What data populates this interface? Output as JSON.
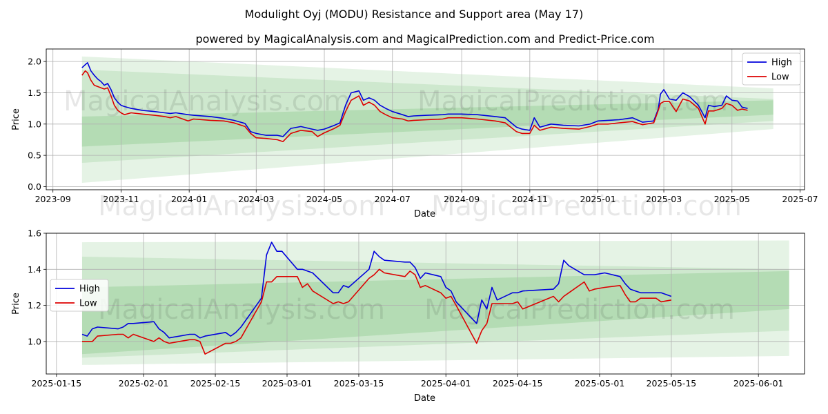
{
  "figure": {
    "title": "Modulight Oyj (MODU) Resistance and Support area (May 17)",
    "subtitle": "powered by MagicalAnalysis.com and MagicalPrediction.com and Predict-Price.com",
    "watermarks": [
      "MagicalAnalysis.com",
      "MagicalPrediction.com"
    ]
  },
  "colors": {
    "high": "#0000dd",
    "low": "#dd0000",
    "band": "#2ca02c",
    "grid": "#b0b0b0"
  },
  "chart_data": [
    {
      "type": "line",
      "xlabel": "Date",
      "ylabel": "Price",
      "legend_position": "top-right",
      "grid": true,
      "x_range": [
        "2023-08-26",
        "2025-07-05"
      ],
      "ylim": [
        -0.05,
        2.2
      ],
      "x_ticks": [
        "2023-09",
        "2023-11",
        "2024-01",
        "2024-03",
        "2024-05",
        "2024-07",
        "2024-09",
        "2024-11",
        "2025-01",
        "2025-03",
        "2025-05",
        "2025-07"
      ],
      "y_ticks": [
        "0.0",
        "0.5",
        "1.0",
        "1.5",
        "2.0"
      ],
      "bands": [
        {
          "x": [
            "2023-09-27",
            "2025-06-07"
          ],
          "upper": [
            2.08,
            1.57
          ],
          "lower": [
            0.06,
            0.92
          ]
        },
        {
          "x": [
            "2023-09-27",
            "2025-06-07"
          ],
          "upper": [
            1.87,
            1.4
          ],
          "lower": [
            0.38,
            1.05
          ]
        },
        {
          "x": [
            "2023-09-27",
            "2025-06-07"
          ],
          "upper": [
            1.12,
            1.38
          ],
          "lower": [
            0.64,
            1.15
          ]
        }
      ],
      "series": [
        {
          "name": "High",
          "x": [
            "2023-09-27",
            "2023-09-30",
            "2023-10-02",
            "2023-10-05",
            "2023-10-08",
            "2023-10-11",
            "2023-10-14",
            "2023-10-17",
            "2023-10-20",
            "2023-10-23",
            "2023-10-26",
            "2023-10-29",
            "2023-11-01",
            "2023-11-04",
            "2023-11-10",
            "2023-11-20",
            "2023-12-01",
            "2023-12-10",
            "2023-12-15",
            "2023-12-20",
            "2023-12-31",
            "2024-01-05",
            "2024-01-20",
            "2024-02-01",
            "2024-02-10",
            "2024-02-20",
            "2024-02-25",
            "2024-03-01",
            "2024-03-10",
            "2024-03-20",
            "2024-03-25",
            "2024-04-01",
            "2024-04-10",
            "2024-04-20",
            "2024-04-25",
            "2024-05-01",
            "2024-05-10",
            "2024-05-15",
            "2024-05-20",
            "2024-05-25",
            "2024-06-01",
            "2024-06-05",
            "2024-06-10",
            "2024-06-15",
            "2024-06-20",
            "2024-06-25",
            "2024-07-01",
            "2024-07-10",
            "2024-07-15",
            "2024-07-20",
            "2024-08-01",
            "2024-08-15",
            "2024-08-20",
            "2024-09-01",
            "2024-09-15",
            "2024-10-01",
            "2024-10-10",
            "2024-10-20",
            "2024-10-25",
            "2024-11-01",
            "2024-11-05",
            "2024-11-10",
            "2024-11-20",
            "2024-12-01",
            "2024-12-15",
            "2024-12-25",
            "2025-01-01",
            "2025-01-10",
            "2025-01-20",
            "2025-02-01",
            "2025-02-10",
            "2025-02-20",
            "2025-02-24",
            "2025-02-26",
            "2025-03-01",
            "2025-03-06",
            "2025-03-12",
            "2025-03-18",
            "2025-03-24",
            "2025-04-01",
            "2025-04-07",
            "2025-04-10",
            "2025-04-15",
            "2025-04-22",
            "2025-04-26",
            "2025-05-01",
            "2025-05-06",
            "2025-05-10",
            "2025-05-15"
          ],
          "values": [
            1.9,
            1.95,
            1.98,
            1.85,
            1.78,
            1.72,
            1.68,
            1.62,
            1.65,
            1.55,
            1.42,
            1.35,
            1.3,
            1.28,
            1.25,
            1.22,
            1.2,
            1.18,
            1.17,
            1.18,
            1.15,
            1.14,
            1.12,
            1.09,
            1.06,
            1.01,
            0.88,
            0.85,
            0.82,
            0.82,
            0.8,
            0.93,
            0.96,
            0.92,
            0.9,
            0.92,
            0.98,
            1.02,
            1.3,
            1.5,
            1.53,
            1.38,
            1.42,
            1.38,
            1.3,
            1.25,
            1.2,
            1.15,
            1.12,
            1.13,
            1.14,
            1.15,
            1.16,
            1.16,
            1.15,
            1.12,
            1.1,
            0.95,
            0.92,
            0.9,
            1.1,
            0.95,
            1.0,
            0.98,
            0.97,
            1.0,
            1.05,
            1.06,
            1.07,
            1.1,
            1.03,
            1.05,
            1.24,
            1.48,
            1.55,
            1.4,
            1.38,
            1.5,
            1.44,
            1.3,
            1.1,
            1.3,
            1.28,
            1.3,
            1.45,
            1.38,
            1.37,
            1.27,
            1.25
          ]
        },
        {
          "name": "Low",
          "x": [
            "2023-09-27",
            "2023-09-30",
            "2023-10-02",
            "2023-10-05",
            "2023-10-08",
            "2023-10-11",
            "2023-10-14",
            "2023-10-17",
            "2023-10-20",
            "2023-10-23",
            "2023-10-26",
            "2023-10-29",
            "2023-11-01",
            "2023-11-04",
            "2023-11-10",
            "2023-11-20",
            "2023-12-01",
            "2023-12-10",
            "2023-12-15",
            "2023-12-20",
            "2023-12-31",
            "2024-01-05",
            "2024-01-20",
            "2024-02-01",
            "2024-02-10",
            "2024-02-20",
            "2024-02-25",
            "2024-03-01",
            "2024-03-10",
            "2024-03-20",
            "2024-03-25",
            "2024-04-01",
            "2024-04-10",
            "2024-04-20",
            "2024-04-25",
            "2024-05-01",
            "2024-05-10",
            "2024-05-15",
            "2024-05-20",
            "2024-05-25",
            "2024-06-01",
            "2024-06-05",
            "2024-06-10",
            "2024-06-15",
            "2024-06-20",
            "2024-06-25",
            "2024-07-01",
            "2024-07-10",
            "2024-07-15",
            "2024-07-20",
            "2024-08-01",
            "2024-08-15",
            "2024-08-20",
            "2024-09-01",
            "2024-09-15",
            "2024-10-01",
            "2024-10-10",
            "2024-10-20",
            "2024-10-25",
            "2024-11-01",
            "2024-11-05",
            "2024-11-10",
            "2024-11-20",
            "2024-12-01",
            "2024-12-15",
            "2024-12-25",
            "2025-01-01",
            "2025-01-10",
            "2025-01-20",
            "2025-02-01",
            "2025-02-10",
            "2025-02-20",
            "2025-02-24",
            "2025-02-26",
            "2025-03-01",
            "2025-03-06",
            "2025-03-12",
            "2025-03-18",
            "2025-03-24",
            "2025-04-01",
            "2025-04-07",
            "2025-04-10",
            "2025-04-15",
            "2025-04-22",
            "2025-04-26",
            "2025-05-01",
            "2025-05-06",
            "2025-05-10",
            "2025-05-15"
          ],
          "values": [
            1.78,
            1.85,
            1.82,
            1.7,
            1.62,
            1.6,
            1.58,
            1.56,
            1.58,
            1.45,
            1.3,
            1.22,
            1.18,
            1.15,
            1.18,
            1.16,
            1.14,
            1.12,
            1.1,
            1.12,
            1.05,
            1.08,
            1.06,
            1.05,
            1.02,
            0.96,
            0.85,
            0.78,
            0.77,
            0.75,
            0.72,
            0.85,
            0.9,
            0.88,
            0.8,
            0.86,
            0.93,
            0.98,
            1.2,
            1.38,
            1.45,
            1.3,
            1.35,
            1.3,
            1.2,
            1.15,
            1.1,
            1.08,
            1.05,
            1.06,
            1.07,
            1.08,
            1.1,
            1.1,
            1.08,
            1.05,
            1.02,
            0.88,
            0.85,
            0.85,
            0.98,
            0.9,
            0.95,
            0.93,
            0.92,
            0.96,
            1.0,
            1.0,
            1.02,
            1.04,
            0.99,
            1.02,
            1.22,
            1.33,
            1.36,
            1.36,
            1.2,
            1.4,
            1.37,
            1.25,
            1.0,
            1.21,
            1.21,
            1.25,
            1.33,
            1.3,
            1.22,
            1.24,
            1.22
          ]
        }
      ]
    },
    {
      "type": "line",
      "xlabel": "Date",
      "ylabel": "Price",
      "legend_position": "center-left",
      "grid": true,
      "x_range": [
        "2025-01-13",
        "2025-06-10"
      ],
      "ylim": [
        0.82,
        1.6
      ],
      "x_ticks": [
        "2025-01-15",
        "2025-02-01",
        "2025-02-15",
        "2025-03-01",
        "2025-03-15",
        "2025-04-01",
        "2025-04-15",
        "2025-05-01",
        "2025-05-15",
        "2025-06-01"
      ],
      "y_ticks": [
        "1.0",
        "1.2",
        "1.4",
        "1.6"
      ],
      "bands": [
        {
          "x": [
            "2025-01-20",
            "2025-06-07"
          ],
          "upper": [
            1.55,
            1.56
          ],
          "lower": [
            0.87,
            0.92
          ]
        },
        {
          "x": [
            "2025-01-20",
            "2025-06-07"
          ],
          "upper": [
            1.47,
            1.4
          ],
          "lower": [
            0.91,
            1.06
          ]
        },
        {
          "x": [
            "2025-01-20",
            "2025-06-07"
          ],
          "upper": [
            1.3,
            1.39
          ],
          "lower": [
            0.93,
            1.18
          ]
        }
      ],
      "series": [
        {
          "name": "High",
          "x": [
            "2025-01-20",
            "2025-01-21",
            "2025-01-22",
            "2025-01-23",
            "2025-01-27",
            "2025-01-28",
            "2025-01-29",
            "2025-01-30",
            "2025-02-03",
            "2025-02-04",
            "2025-02-05",
            "2025-02-06",
            "2025-02-10",
            "2025-02-11",
            "2025-02-12",
            "2025-02-13",
            "2025-02-17",
            "2025-02-18",
            "2025-02-19",
            "2025-02-20",
            "2025-02-24",
            "2025-02-25",
            "2025-02-26",
            "2025-02-27",
            "2025-02-28",
            "2025-03-03",
            "2025-03-04",
            "2025-03-05",
            "2025-03-06",
            "2025-03-10",
            "2025-03-11",
            "2025-03-12",
            "2025-03-13",
            "2025-03-17",
            "2025-03-18",
            "2025-03-19",
            "2025-03-20",
            "2025-03-24",
            "2025-03-25",
            "2025-03-26",
            "2025-03-27",
            "2025-03-28",
            "2025-03-31",
            "2025-04-01",
            "2025-04-02",
            "2025-04-03",
            "2025-04-07",
            "2025-04-08",
            "2025-04-09",
            "2025-04-10",
            "2025-04-11",
            "2025-04-14",
            "2025-04-15",
            "2025-04-16",
            "2025-04-22",
            "2025-04-23",
            "2025-04-24",
            "2025-04-25",
            "2025-04-28",
            "2025-04-29",
            "2025-04-30",
            "2025-05-02",
            "2025-05-05",
            "2025-05-06",
            "2025-05-07",
            "2025-05-08",
            "2025-05-09",
            "2025-05-12",
            "2025-05-13",
            "2025-05-15"
          ],
          "values": [
            1.04,
            1.03,
            1.07,
            1.08,
            1.07,
            1.08,
            1.1,
            1.1,
            1.11,
            1.07,
            1.05,
            1.02,
            1.04,
            1.04,
            1.02,
            1.03,
            1.05,
            1.03,
            1.05,
            1.08,
            1.24,
            1.48,
            1.55,
            1.5,
            1.5,
            1.4,
            1.4,
            1.39,
            1.38,
            1.27,
            1.27,
            1.31,
            1.3,
            1.4,
            1.5,
            1.47,
            1.45,
            1.44,
            1.44,
            1.41,
            1.35,
            1.38,
            1.36,
            1.3,
            1.28,
            1.22,
            1.1,
            1.23,
            1.18,
            1.3,
            1.23,
            1.27,
            1.27,
            1.28,
            1.29,
            1.32,
            1.45,
            1.42,
            1.37,
            1.37,
            1.37,
            1.38,
            1.36,
            1.32,
            1.29,
            1.28,
            1.27,
            1.27,
            1.27,
            1.25
          ]
        },
        {
          "name": "Low",
          "x": [
            "2025-01-20",
            "2025-01-21",
            "2025-01-22",
            "2025-01-23",
            "2025-01-27",
            "2025-01-28",
            "2025-01-29",
            "2025-01-30",
            "2025-02-03",
            "2025-02-04",
            "2025-02-05",
            "2025-02-06",
            "2025-02-10",
            "2025-02-11",
            "2025-02-12",
            "2025-02-13",
            "2025-02-17",
            "2025-02-18",
            "2025-02-19",
            "2025-02-20",
            "2025-02-24",
            "2025-02-25",
            "2025-02-26",
            "2025-02-27",
            "2025-02-28",
            "2025-03-03",
            "2025-03-04",
            "2025-03-05",
            "2025-03-06",
            "2025-03-10",
            "2025-03-11",
            "2025-03-12",
            "2025-03-13",
            "2025-03-17",
            "2025-03-18",
            "2025-03-19",
            "2025-03-20",
            "2025-03-24",
            "2025-03-25",
            "2025-03-26",
            "2025-03-27",
            "2025-03-28",
            "2025-03-31",
            "2025-04-01",
            "2025-04-02",
            "2025-04-03",
            "2025-04-07",
            "2025-04-08",
            "2025-04-09",
            "2025-04-10",
            "2025-04-11",
            "2025-04-14",
            "2025-04-15",
            "2025-04-16",
            "2025-04-22",
            "2025-04-23",
            "2025-04-24",
            "2025-04-25",
            "2025-04-28",
            "2025-04-29",
            "2025-04-30",
            "2025-05-02",
            "2025-05-05",
            "2025-05-06",
            "2025-05-07",
            "2025-05-08",
            "2025-05-09",
            "2025-05-12",
            "2025-05-13",
            "2025-05-15"
          ],
          "values": [
            1.0,
            1.0,
            1.0,
            1.03,
            1.04,
            1.04,
            1.02,
            1.04,
            1.0,
            1.02,
            1.0,
            0.99,
            1.01,
            1.01,
            1.0,
            0.93,
            0.99,
            0.99,
            1.0,
            1.02,
            1.22,
            1.33,
            1.33,
            1.36,
            1.36,
            1.36,
            1.3,
            1.32,
            1.28,
            1.21,
            1.22,
            1.21,
            1.22,
            1.35,
            1.37,
            1.4,
            1.38,
            1.36,
            1.39,
            1.37,
            1.3,
            1.31,
            1.27,
            1.24,
            1.25,
            1.2,
            0.99,
            1.06,
            1.1,
            1.21,
            1.21,
            1.21,
            1.22,
            1.18,
            1.25,
            1.22,
            1.25,
            1.27,
            1.33,
            1.28,
            1.29,
            1.3,
            1.31,
            1.26,
            1.22,
            1.22,
            1.24,
            1.24,
            1.22,
            1.23
          ]
        }
      ]
    }
  ]
}
